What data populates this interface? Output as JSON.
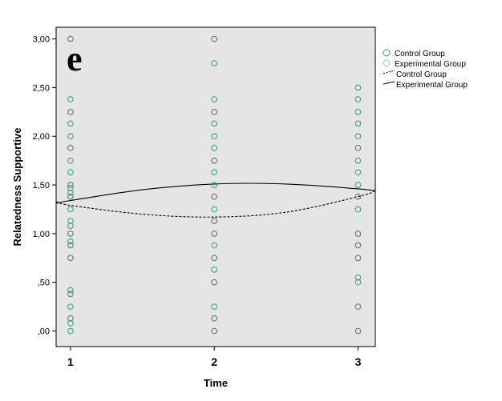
{
  "chart_data": {
    "type": "scatter",
    "panel_label": "e",
    "xlabel": "Time",
    "ylabel": "Relatedness Supportive",
    "x_ticks": [
      1,
      2,
      3
    ],
    "x_tick_labels": [
      "1",
      "2",
      "3"
    ],
    "xlim": [
      0.9,
      3.12
    ],
    "ylim": [
      -0.16,
      3.12
    ],
    "y_ticks": [
      0,
      0.5,
      1.0,
      1.5,
      2.0,
      2.5,
      3.0
    ],
    "y_tick_labels": [
      ",00",
      ",50",
      "1,00",
      "1,50",
      "2,00",
      "2,50",
      "3,00"
    ],
    "grid": false,
    "legend_position": "outside-top-right",
    "colors": {
      "background": "#e5e5e5",
      "control_markers": "#5a6a66",
      "experimental_markers": "#2e9e72",
      "lines": "#000000"
    },
    "legend": [
      {
        "label": "Control Group",
        "kind": "marker",
        "color": "#2e9e72"
      },
      {
        "label": "Experimental Group",
        "kind": "marker",
        "color": "#8fcfb8"
      },
      {
        "label": "Control Group",
        "kind": "dashed-line",
        "color": "#000000"
      },
      {
        "label": "Experimental Group",
        "kind": "solid-line",
        "color": "#000000"
      }
    ],
    "series": [
      {
        "name": "Control Group",
        "marker": "circle",
        "color": "#5a6a66",
        "points": [
          {
            "x": 1,
            "y": 3.0
          },
          {
            "x": 1,
            "y": 2.25
          },
          {
            "x": 1,
            "y": 1.88
          },
          {
            "x": 1,
            "y": 1.5
          },
          {
            "x": 1,
            "y": 1.38
          },
          {
            "x": 1,
            "y": 1.0
          },
          {
            "x": 1,
            "y": 0.88
          },
          {
            "x": 1,
            "y": 0.75
          },
          {
            "x": 1,
            "y": 0.38
          },
          {
            "x": 1,
            "y": 0.13
          },
          {
            "x": 2,
            "y": 3.0
          },
          {
            "x": 2,
            "y": 2.25
          },
          {
            "x": 2,
            "y": 1.75
          },
          {
            "x": 2,
            "y": 1.38
          },
          {
            "x": 2,
            "y": 1.13
          },
          {
            "x": 2,
            "y": 1.0
          },
          {
            "x": 2,
            "y": 0.75
          },
          {
            "x": 2,
            "y": 0.5
          },
          {
            "x": 2,
            "y": 0.13
          },
          {
            "x": 2,
            "y": 0.0
          },
          {
            "x": 3,
            "y": 1.88
          },
          {
            "x": 3,
            "y": 1.38
          },
          {
            "x": 3,
            "y": 1.0
          },
          {
            "x": 3,
            "y": 0.88
          },
          {
            "x": 3,
            "y": 0.75
          },
          {
            "x": 3,
            "y": 0.25
          },
          {
            "x": 3,
            "y": 0.0
          }
        ]
      },
      {
        "name": "Experimental Group",
        "marker": "circle",
        "color": "#2e9e72",
        "points": [
          {
            "x": 1,
            "y": 2.38
          },
          {
            "x": 1,
            "y": 2.13
          },
          {
            "x": 1,
            "y": 2.0
          },
          {
            "x": 1,
            "y": 1.75
          },
          {
            "x": 1,
            "y": 1.63
          },
          {
            "x": 1,
            "y": 1.47
          },
          {
            "x": 1,
            "y": 1.42
          },
          {
            "x": 1,
            "y": 1.25
          },
          {
            "x": 1,
            "y": 1.13
          },
          {
            "x": 1,
            "y": 1.08
          },
          {
            "x": 1,
            "y": 0.92
          },
          {
            "x": 1,
            "y": 0.42
          },
          {
            "x": 1,
            "y": 0.25
          },
          {
            "x": 1,
            "y": 0.08
          },
          {
            "x": 1,
            "y": 0.0
          },
          {
            "x": 2,
            "y": 2.75
          },
          {
            "x": 2,
            "y": 2.38
          },
          {
            "x": 2,
            "y": 2.13
          },
          {
            "x": 2,
            "y": 2.0
          },
          {
            "x": 2,
            "y": 1.88
          },
          {
            "x": 2,
            "y": 1.63
          },
          {
            "x": 2,
            "y": 1.5
          },
          {
            "x": 2,
            "y": 1.25
          },
          {
            "x": 2,
            "y": 0.88
          },
          {
            "x": 2,
            "y": 0.63
          },
          {
            "x": 2,
            "y": 0.25
          },
          {
            "x": 3,
            "y": 2.5
          },
          {
            "x": 3,
            "y": 2.38
          },
          {
            "x": 3,
            "y": 2.25
          },
          {
            "x": 3,
            "y": 2.13
          },
          {
            "x": 3,
            "y": 2.0
          },
          {
            "x": 3,
            "y": 1.75
          },
          {
            "x": 3,
            "y": 1.63
          },
          {
            "x": 3,
            "y": 1.5
          },
          {
            "x": 3,
            "y": 1.25
          },
          {
            "x": 3,
            "y": 0.55
          },
          {
            "x": 3,
            "y": 0.5
          }
        ]
      }
    ],
    "fit_lines": [
      {
        "name": "Control Group",
        "style": "dashed",
        "x": [
          0.9,
          1.0,
          1.5,
          2.0,
          2.5,
          3.0,
          3.12
        ],
        "y": [
          1.33,
          1.29,
          1.2,
          1.17,
          1.22,
          1.38,
          1.44
        ]
      },
      {
        "name": "Experimental Group",
        "style": "solid",
        "x": [
          0.9,
          1.0,
          1.5,
          2.0,
          2.5,
          3.0,
          3.12
        ],
        "y": [
          1.31,
          1.34,
          1.45,
          1.51,
          1.51,
          1.46,
          1.44
        ]
      }
    ]
  }
}
